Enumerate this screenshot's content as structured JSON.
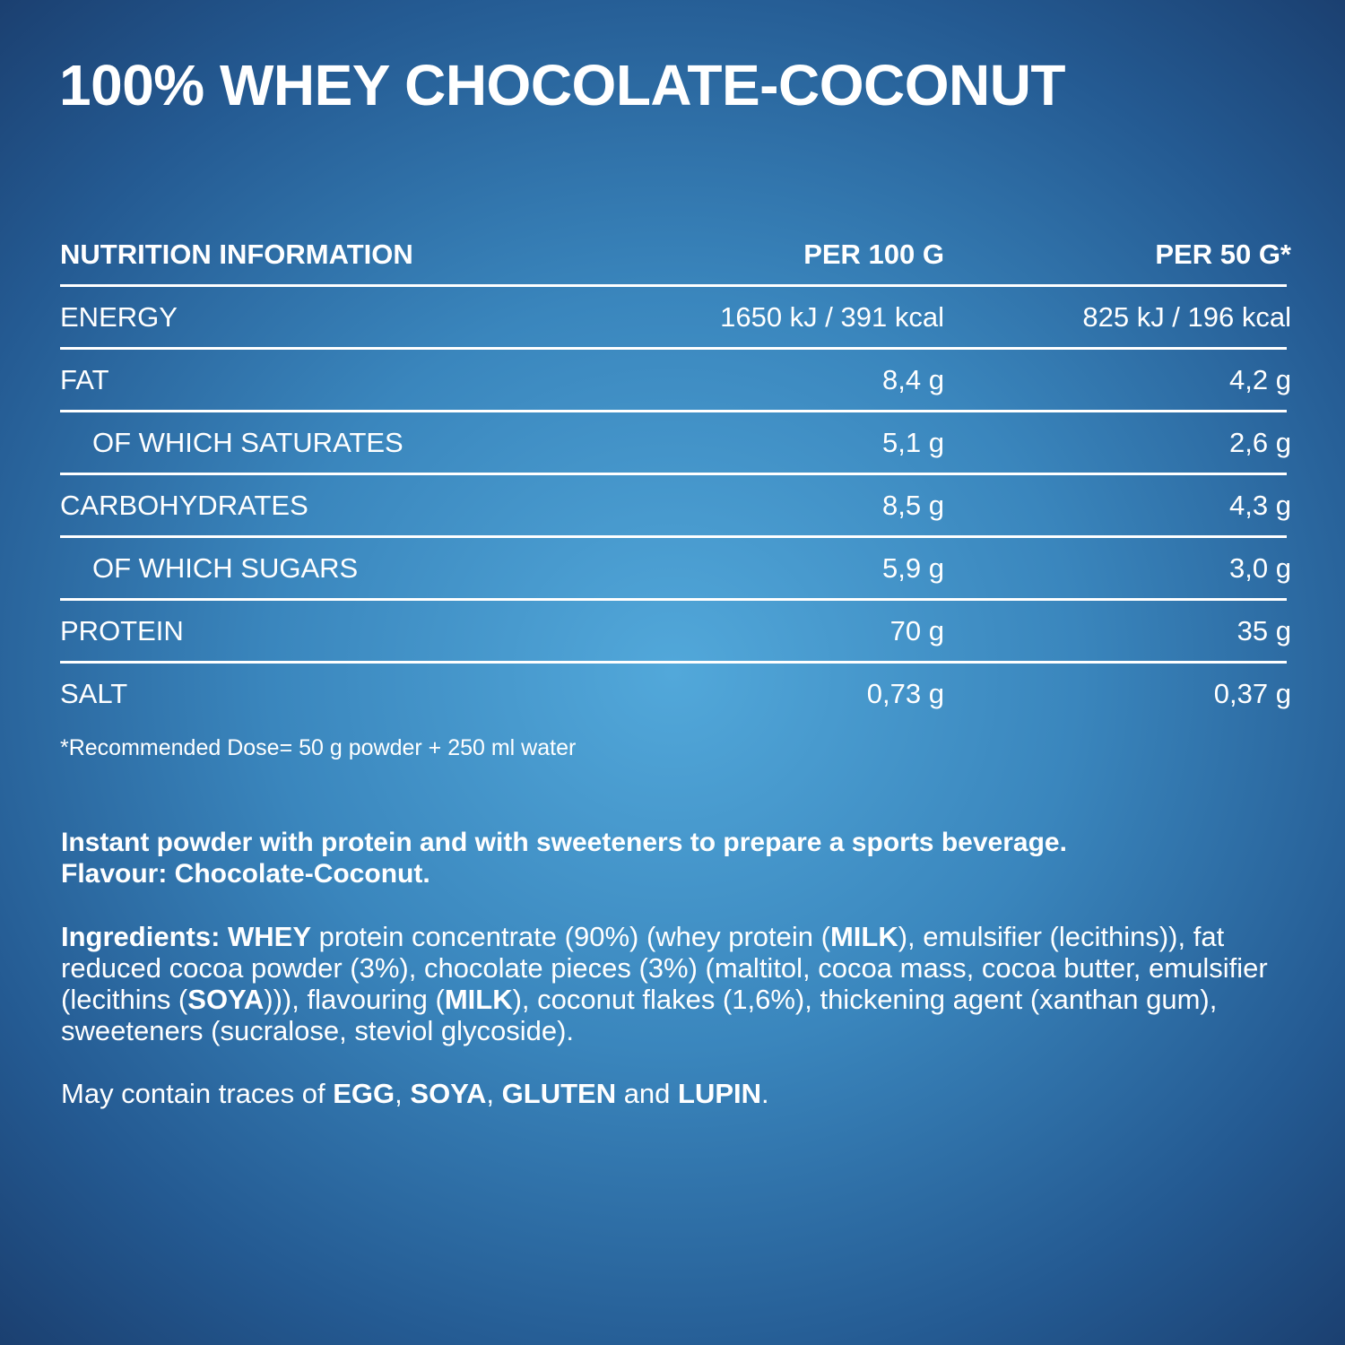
{
  "header": {
    "title": "100% WHEY CHOCOLATE-COCONUT"
  },
  "table": {
    "columns": [
      "NUTRITION INFORMATION",
      "PER 100 G",
      "PER 50 G*"
    ],
    "rows": [
      {
        "label": "ENERGY",
        "per_100g": "1650 kJ / 391 kcal",
        "per_50g": "825 kJ / 196 kcal",
        "indent": false
      },
      {
        "label": "FAT",
        "per_100g": "8,4 g",
        "per_50g": "4,2 g",
        "indent": false
      },
      {
        "label": "OF WHICH SATURATES",
        "per_100g": "5,1 g",
        "per_50g": "2,6 g",
        "indent": true
      },
      {
        "label": "CARBOHYDRATES",
        "per_100g": "8,5 g",
        "per_50g": "4,3 g",
        "indent": false
      },
      {
        "label": "OF WHICH SUGARS",
        "per_100g": "5,9 g",
        "per_50g": "3,0 g",
        "indent": true
      },
      {
        "label": "PROTEIN",
        "per_100g": "70 g",
        "per_50g": "35 g",
        "indent": false
      },
      {
        "label": "SALT",
        "per_100g": "0,73 g",
        "per_50g": "0,37 g",
        "indent": false
      }
    ],
    "footnote": "*Recommended Dose= 50 g powder + 250 ml water"
  },
  "description": [
    "Instant powder with protein and with sweeteners to prepare a sports beverage.",
    "Flavour: Chocolate-Coconut."
  ],
  "ingredients": [
    {
      "text": "Ingredients: WHEY",
      "bold": true
    },
    {
      "text": " protein concentrate (90%) (whey protein (",
      "bold": false
    },
    {
      "text": "MILK",
      "bold": true
    },
    {
      "text": "), emulsifier (lecithins)), fat reduced cocoa powder (3%), chocolate pieces (3%) (maltitol, cocoa mass, cocoa butter, emulsifier (lecithins (",
      "bold": false
    },
    {
      "text": "SOYA",
      "bold": true
    },
    {
      "text": "))), flavouring (",
      "bold": false
    },
    {
      "text": "MILK",
      "bold": true
    },
    {
      "text": "), coconut flakes (1,6%), thickening agent (xanthan gum), sweeteners (sucralose, steviol glycoside).",
      "bold": false
    }
  ],
  "allergens": [
    {
      "text": "May contain traces of ",
      "bold": false
    },
    {
      "text": "EGG",
      "bold": true
    },
    {
      "text": ", ",
      "bold": false
    },
    {
      "text": "SOYA",
      "bold": true
    },
    {
      "text": ", ",
      "bold": false
    },
    {
      "text": "GLUTEN",
      "bold": true
    },
    {
      "text": " and ",
      "bold": false
    },
    {
      "text": "LUPIN",
      "bold": true
    },
    {
      "text": ".",
      "bold": false
    }
  ]
}
